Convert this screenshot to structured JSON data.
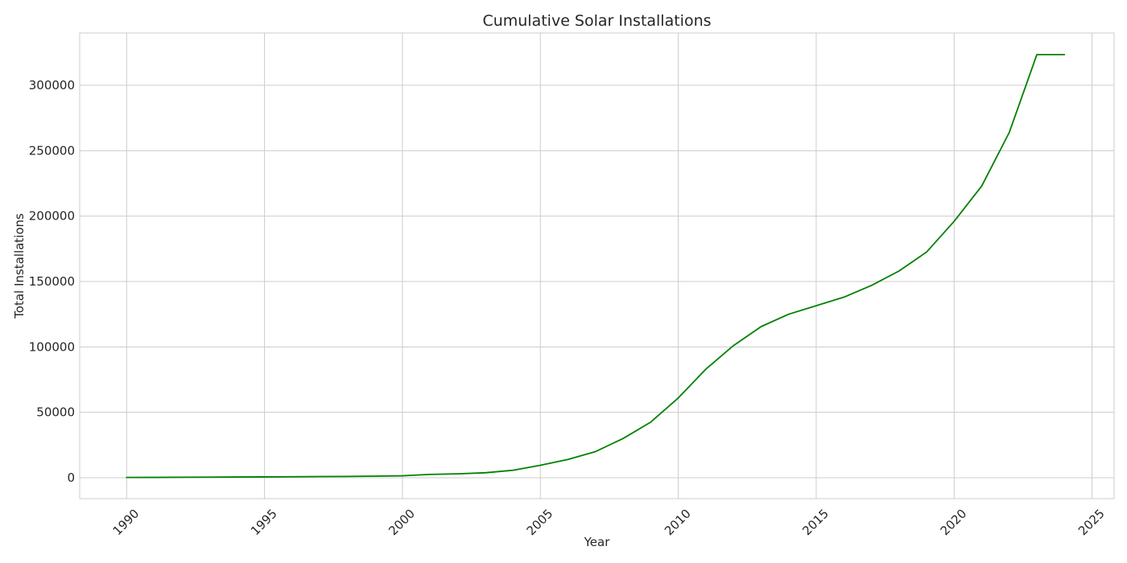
{
  "chart_data": {
    "type": "line",
    "title": "Cumulative Solar Installations",
    "xlabel": "Year",
    "ylabel": "Total Installations",
    "xlim": [
      1988.3,
      2025.8
    ],
    "ylim": [
      -16000,
      340000
    ],
    "x_ticks": [
      1990,
      1995,
      2000,
      2005,
      2010,
      2015,
      2020,
      2025
    ],
    "y_ticks": [
      0,
      50000,
      100000,
      150000,
      200000,
      250000,
      300000
    ],
    "x_tick_labels": [
      "1990",
      "1995",
      "2000",
      "2005",
      "2010",
      "2015",
      "2020",
      "2025"
    ],
    "y_tick_labels": [
      "0",
      "50000",
      "100000",
      "150000",
      "200000",
      "250000",
      "300000"
    ],
    "x_tick_rotation": 45,
    "grid": true,
    "series": [
      {
        "color": "#008000",
        "x": [
          1990,
          1991,
          1992,
          1993,
          1994,
          1995,
          1996,
          1997,
          1998,
          1999,
          2000,
          2001,
          2002,
          2003,
          2004,
          2005,
          2006,
          2007,
          2008,
          2009,
          2010,
          2011,
          2012,
          2013,
          2014,
          2015,
          2016,
          2017,
          2018,
          2019,
          2020,
          2021,
          2022,
          2023,
          2024
        ],
        "y": [
          200,
          250,
          350,
          450,
          550,
          650,
          750,
          900,
          1000,
          1200,
          1500,
          2500,
          3000,
          3800,
          5700,
          9500,
          14000,
          20000,
          30000,
          42500,
          61000,
          83000,
          101000,
          115500,
          125000,
          131500,
          138000,
          147000,
          158000,
          172500,
          196000,
          223000,
          264000,
          323500,
          323500
        ]
      }
    ]
  }
}
